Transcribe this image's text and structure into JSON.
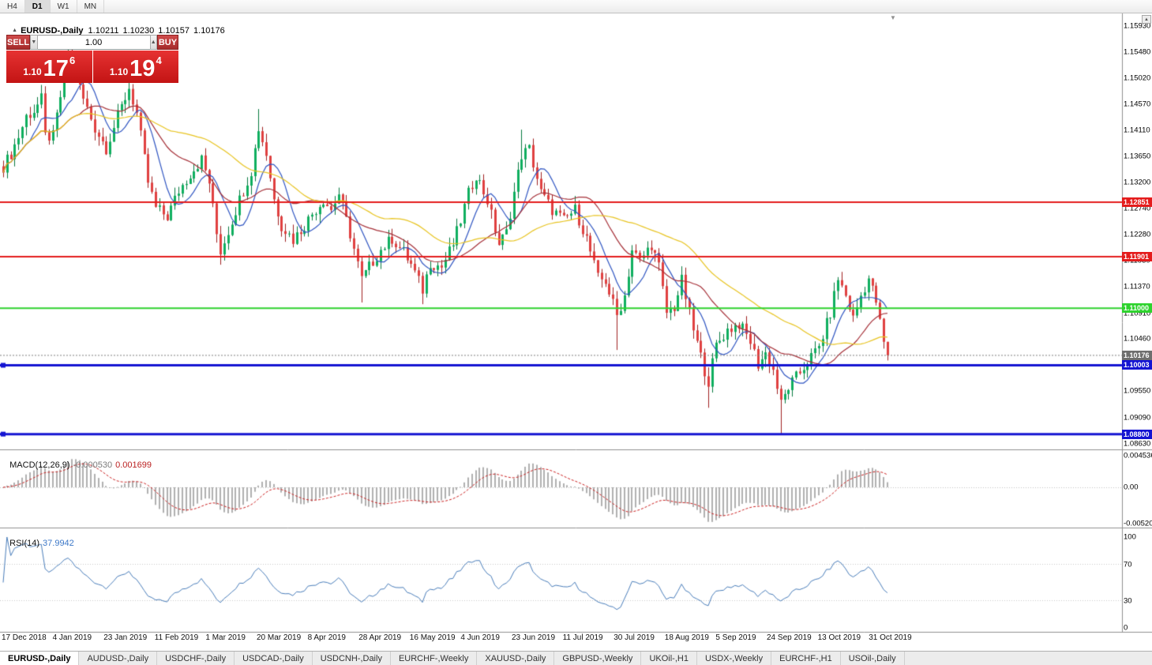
{
  "toolbar": {
    "timeframes": [
      "H4",
      "D1",
      "W1",
      "MN"
    ],
    "active": "D1"
  },
  "chart_header": {
    "collapse_icon": "▲",
    "symbol_title": "EURUSD-,Daily",
    "ohlc": [
      "1.10211",
      "1.10230",
      "1.10157",
      "1.10176"
    ]
  },
  "one_click": {
    "sell_label": "SELL",
    "buy_label": "BUY",
    "volume": "1.00",
    "volume_down_icon": "▼",
    "volume_up_icon": "▲",
    "sell_price": {
      "prefix": "1.10",
      "big": "17",
      "sup": "6"
    },
    "buy_price": {
      "prefix": "1.10",
      "big": "19",
      "sup": "4"
    }
  },
  "indicators": {
    "macd": {
      "label": "MACD(12,26,9)",
      "main_value": "-0.000530",
      "signal_value": "0.001699",
      "axis": [
        {
          "label": "0.004536",
          "value": 0.004536
        },
        {
          "label": "0.00",
          "value": 0
        },
        {
          "label": "-0.00520",
          "value": -0.0052
        }
      ]
    },
    "rsi": {
      "label": "RSI(14)",
      "value": "37.9942",
      "axis": [
        {
          "label": "100",
          "value": 100
        },
        {
          "label": "70",
          "value": 70
        },
        {
          "label": "30",
          "value": 30
        },
        {
          "label": "0",
          "value": 0
        }
      ]
    }
  },
  "tabs": [
    "EURUSD-,Daily",
    "AUDUSD-,Daily",
    "USDCHF-,Daily",
    "USDCAD-,Daily",
    "USDCNH-,Daily",
    "EURCHF-,Weekly",
    "XAUUSD-,Daily",
    "GBPUSD-,Weekly",
    "UKOil-,H1",
    "USDX-,Weekly",
    "EURCHF-,H1",
    "USOil-,Daily"
  ],
  "active_tab": "EURUSD-,Daily",
  "scrollbar": {
    "up_icon": "▲"
  },
  "chart_data": {
    "type": "candlestick",
    "symbol": "EURUSD",
    "period": "Daily",
    "current_price": 1.10176,
    "current_price_label": "1.10176",
    "bid": 1.10176,
    "ask": 1.10194,
    "price_range": {
      "top": 1.16151,
      "bottom": 1.08533
    },
    "price_axis_ticks": [
      "1.15930",
      "1.15480",
      "1.15020",
      "1.14570",
      "1.14110",
      "1.13650",
      "1.13200",
      "1.12740",
      "1.12280",
      "1.11830",
      "1.11370",
      "1.10910",
      "1.10460",
      "1.09550",
      "1.09090",
      "1.08630"
    ],
    "levels": [
      {
        "price": 1.12851,
        "label": "1.12851",
        "color": "#e41c1c",
        "width": 2,
        "handles": false
      },
      {
        "price": 1.11901,
        "label": "1.11901",
        "color": "#e41c1c",
        "width": 2,
        "handles": false
      },
      {
        "price": 1.11,
        "label": "1.11000",
        "color": "#2ed32e",
        "width": 2,
        "handles": false
      },
      {
        "price": 1.10003,
        "label": "1.10003",
        "color": "#1414d2",
        "width": 3,
        "handles": true
      },
      {
        "price": 1.088,
        "label": "1.08800",
        "color": "#1414d2",
        "width": 3,
        "handles": true
      }
    ],
    "x_labels": [
      "17 Dec 2018",
      "4 Jan 2019",
      "23 Jan 2019",
      "11 Feb 2019",
      "1 Mar 2019",
      "20 Mar 2019",
      "8 Apr 2019",
      "28 Apr 2019",
      "16 May 2019",
      "4 Jun 2019",
      "23 Jun 2019",
      "11 Jul 2019",
      "30 Jul 2019",
      "18 Aug 2019",
      "5 Sep 2019",
      "24 Sep 2019",
      "13 Oct 2019",
      "31 Oct 2019"
    ],
    "candle_count": 233,
    "close_keypoints": [
      [
        0,
        1.1348
      ],
      [
        2,
        1.137
      ],
      [
        4,
        1.14
      ],
      [
        6,
        1.1435
      ],
      [
        8,
        1.1445
      ],
      [
        10,
        1.1465
      ],
      [
        11,
        1.14
      ],
      [
        13,
        1.14
      ],
      [
        15,
        1.147
      ],
      [
        17,
        1.1545
      ],
      [
        19,
        1.1505
      ],
      [
        21,
        1.1465
      ],
      [
        24,
        1.1415
      ],
      [
        27,
        1.138
      ],
      [
        30,
        1.1435
      ],
      [
        33,
        1.1485
      ],
      [
        35,
        1.144
      ],
      [
        38,
        1.132
      ],
      [
        40,
        1.1275
      ],
      [
        43,
        1.126
      ],
      [
        46,
        1.1305
      ],
      [
        49,
        1.1335
      ],
      [
        52,
        1.136
      ],
      [
        54,
        1.132
      ],
      [
        56,
        1.123
      ],
      [
        57,
        1.12
      ],
      [
        59,
        1.1235
      ],
      [
        62,
        1.129
      ],
      [
        65,
        1.134
      ],
      [
        67,
        1.1415
      ],
      [
        69,
        1.137
      ],
      [
        71,
        1.129
      ],
      [
        73,
        1.1245
      ],
      [
        76,
        1.122
      ],
      [
        79,
        1.1245
      ],
      [
        81,
        1.1265
      ],
      [
        84,
        1.129
      ],
      [
        86,
        1.1272
      ],
      [
        88,
        1.13
      ],
      [
        91,
        1.123
      ],
      [
        94,
        1.115
      ],
      [
        96,
        1.1172
      ],
      [
        99,
        1.1202
      ],
      [
        102,
        1.1222
      ],
      [
        105,
        1.1198
      ],
      [
        107,
        1.1176
      ],
      [
        110,
        1.1132
      ],
      [
        112,
        1.118
      ],
      [
        115,
        1.1172
      ],
      [
        118,
        1.1212
      ],
      [
        120,
        1.1253
      ],
      [
        122,
        1.13
      ],
      [
        124,
        1.1334
      ],
      [
        127,
        1.1288
      ],
      [
        130,
        1.1212
      ],
      [
        132,
        1.1232
      ],
      [
        134,
        1.1302
      ],
      [
        136,
        1.1368
      ],
      [
        138,
        1.1378
      ],
      [
        141,
        1.1302
      ],
      [
        144,
        1.1272
      ],
      [
        147,
        1.1253
      ],
      [
        150,
        1.1272
      ],
      [
        153,
        1.1222
      ],
      [
        156,
        1.1152
      ],
      [
        158,
        1.1148
      ],
      [
        161,
        1.1087
      ],
      [
        163,
        1.1122
      ],
      [
        165,
        1.1202
      ],
      [
        167,
        1.1182
      ],
      [
        170,
        1.1212
      ],
      [
        172,
        1.1172
      ],
      [
        174,
        1.1092
      ],
      [
        176,
        1.1102
      ],
      [
        178,
        1.1148
      ],
      [
        181,
        1.1062
      ],
      [
        184,
        1.0992
      ],
      [
        185,
        1.0972
      ],
      [
        187,
        1.1035
      ],
      [
        190,
        1.1062
      ],
      [
        193,
        1.1073
      ],
      [
        196,
        1.1042
      ],
      [
        198,
        1.1002
      ],
      [
        200,
        1.1021
      ],
      [
        202,
        1.0992
      ],
      [
        204,
        1.0932
      ],
      [
        206,
        1.0962
      ],
      [
        208,
        1.0979
      ],
      [
        211,
        1.1006
      ],
      [
        214,
        1.1032
      ],
      [
        217,
        1.1092
      ],
      [
        219,
        1.1152
      ],
      [
        221,
        1.1122
      ],
      [
        223,
        1.1082
      ],
      [
        225,
        1.1122
      ],
      [
        227,
        1.1152
      ],
      [
        229,
        1.1112
      ],
      [
        230,
        1.1074
      ],
      [
        231,
        1.104
      ],
      [
        232,
        1.10176
      ]
    ],
    "wick_overrides": {
      "17": {
        "h": 1.157
      },
      "33": {
        "h": 1.1515
      },
      "57": {
        "l": 1.1176
      },
      "67": {
        "h": 1.1448
      },
      "94": {
        "l": 1.111
      },
      "110": {
        "l": 1.1107
      },
      "136": {
        "h": 1.1412
      },
      "161": {
        "l": 1.1027
      },
      "185": {
        "l": 1.0926
      },
      "204": {
        "l": 1.0879
      }
    },
    "moving_averages": [
      {
        "period": 8,
        "color": "#2f55c2"
      },
      {
        "period": 21,
        "color": "#a63038"
      },
      {
        "period": 45,
        "color": "#e8c420"
      }
    ],
    "candle_colors": {
      "up": "#0faf5f",
      "up_wick": "#067a3f",
      "down": "#e04040",
      "down_wick": "#a02020"
    },
    "macd_colors": {
      "histogram": "#b0b0b0",
      "signal": "#cc2020"
    },
    "rsi_color": "#4a7ebb",
    "rsi_levels": [
      30,
      70
    ],
    "markers": {
      "shift_icon": "▼"
    }
  }
}
